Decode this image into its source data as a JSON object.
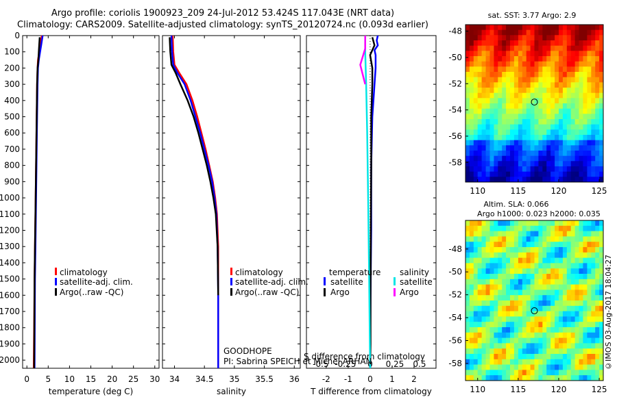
{
  "title_line1": "Argo profile: coriolis 1900923_209 24-Jul-2012 53.424S 117.043E (NRT data)",
  "title_line2": "Climatology: CARS2009. Satellite-adjusted climatology: synTS_20120724.nc (0.093d earlier)",
  "stamp": "©IMOS 03-Aug-2017 18:04:27",
  "colors": {
    "climatology": "#ff0000",
    "satellite": "#0000ff",
    "argo": "#000000",
    "s_satellite": "#00e5e5",
    "s_argo": "#ff00ff"
  },
  "chart_data": [
    {
      "type": "line",
      "panel": "temperature",
      "xlabel": "temperature (deg C)",
      "ylabel": "",
      "xlim": [
        -1,
        31
      ],
      "ylim": [
        2050,
        0
      ],
      "xticks": [
        "0",
        "5",
        "10",
        "15",
        "20",
        "25",
        "30"
      ],
      "yticks": [
        "0",
        "100",
        "200",
        "300",
        "400",
        "500",
        "600",
        "700",
        "800",
        "900",
        "1000",
        "1100",
        "1200",
        "1300",
        "1400",
        "1500",
        "1600",
        "1700",
        "1800",
        "1900",
        "2000"
      ],
      "legend": [
        "climatology",
        "satellite-adj. clim.",
        "Argo(..raw -QC)"
      ],
      "series": [
        {
          "name": "climatology",
          "color": "red",
          "x": [
            3.5,
            3.2,
            2.9,
            2.6,
            2.5,
            2.4,
            2.3,
            2.2,
            2.1,
            2.0,
            1.9,
            1.8,
            1.7,
            1.6
          ],
          "y": [
            0,
            50,
            100,
            150,
            200,
            300,
            500,
            700,
            900,
            1100,
            1300,
            1500,
            1800,
            2050
          ]
        },
        {
          "name": "satellite-adj. clim.",
          "color": "blue",
          "x": [
            3.7,
            3.4,
            3.1,
            2.8,
            2.6,
            2.5,
            2.4,
            2.3,
            2.2,
            2.1,
            2.0,
            1.9,
            1.8
          ],
          "y": [
            0,
            50,
            100,
            150,
            200,
            300,
            500,
            700,
            900,
            1100,
            1300,
            1500,
            2050
          ]
        },
        {
          "name": "Argo(..raw -QC)",
          "color": "black",
          "x": [
            3.0,
            2.9,
            2.8,
            2.7,
            2.5,
            2.4,
            2.3,
            2.2,
            2.1,
            2.0,
            1.9,
            1.8,
            1.7
          ],
          "y": [
            10,
            50,
            100,
            150,
            200,
            300,
            500,
            700,
            900,
            1100,
            1300,
            1500,
            2050
          ]
        }
      ]
    },
    {
      "type": "line",
      "panel": "salinity",
      "xlabel": "salinity",
      "xlim": [
        33.8,
        36.1
      ],
      "ylim": [
        2050,
        0
      ],
      "xticks": [
        "34",
        "34.5",
        "35",
        "35.5",
        "36"
      ],
      "legend": [
        "climatology",
        "satellite-adj. clim.",
        "Argo(..raw -QC)"
      ],
      "annotation": [
        "GOODHOPE",
        "PI: Sabrina SPEICH et Michel ARHAN"
      ],
      "series": [
        {
          "name": "climatology",
          "color": "red",
          "x": [
            33.97,
            33.98,
            34.0,
            34.08,
            34.2,
            34.3,
            34.38,
            34.45,
            34.52,
            34.58,
            34.64,
            34.68,
            34.71,
            34.73,
            34.73,
            34.73
          ],
          "y": [
            0,
            100,
            180,
            230,
            300,
            400,
            500,
            600,
            700,
            800,
            900,
            1000,
            1100,
            1300,
            1600,
            2050
          ]
        },
        {
          "name": "satellite-adj. clim.",
          "color": "blue",
          "x": [
            33.95,
            33.96,
            33.98,
            34.05,
            34.17,
            34.27,
            34.35,
            34.43,
            34.5,
            34.57,
            34.63,
            34.67,
            34.7,
            34.72,
            34.73,
            34.73
          ],
          "y": [
            0,
            100,
            180,
            230,
            300,
            400,
            500,
            600,
            700,
            800,
            900,
            1000,
            1100,
            1300,
            1600,
            2050
          ]
        },
        {
          "name": "Argo(..raw -QC)",
          "color": "black",
          "x": [
            33.92,
            33.93,
            33.95,
            34.02,
            34.1,
            34.22,
            34.32,
            34.4,
            34.47,
            34.54,
            34.6,
            34.65,
            34.69,
            34.72,
            34.73
          ],
          "y": [
            10,
            100,
            180,
            230,
            300,
            400,
            500,
            600,
            700,
            800,
            900,
            1000,
            1100,
            1300,
            1600
          ]
        }
      ]
    },
    {
      "type": "line",
      "panel": "difference from climatology",
      "xlabel": "T difference from climatology",
      "x2label": "S difference from climatology",
      "xlim": [
        -2.9,
        3.0
      ],
      "ylim": [
        2050,
        0
      ],
      "xticks": [
        "-2",
        "-1",
        "0",
        "1",
        "2"
      ],
      "x2ticks": [
        "-0.5",
        "-0.25",
        "0",
        "0.25",
        "0.5"
      ],
      "legend": [
        "temperature",
        "satellite",
        "Argo",
        "salinity",
        "satellite",
        "Argo"
      ],
      "series": [
        {
          "name": "temperature satellite",
          "color": "blue",
          "x": [
            0.35,
            0.3,
            0.35,
            0.2,
            0.25,
            0.25,
            0.2,
            0.1,
            0.05,
            0.05,
            0.02,
            0.0
          ],
          "y": [
            0,
            30,
            60,
            90,
            120,
            200,
            300,
            500,
            800,
            1200,
            1600,
            2050
          ]
        },
        {
          "name": "temperature Argo",
          "color": "black",
          "x": [
            0.1,
            0.2,
            0.0,
            0.1,
            0.1,
            0.05,
            0.05,
            0.03,
            0.02,
            0.02,
            0.0
          ],
          "y": [
            10,
            60,
            120,
            200,
            300,
            500,
            800,
            1200,
            1600,
            1900,
            2050
          ]
        },
        {
          "name": "salinity satellite",
          "color": "cyan",
          "x": [
            -0.05,
            -0.05,
            -0.04,
            -0.03,
            -0.02,
            -0.01,
            0.0
          ],
          "y": [
            0,
            100,
            300,
            600,
            1000,
            1500,
            2050
          ]
        },
        {
          "name": "salinity Argo",
          "color": "magenta",
          "x": [
            -0.05,
            -0.05,
            -0.1,
            -0.05
          ],
          "y": [
            0,
            80,
            180,
            300
          ]
        }
      ]
    },
    {
      "type": "heatmap",
      "panel": "sat. SST",
      "title": "sat. SST: 3.77 Argo: 2.9",
      "xlim": [
        108.5,
        125.5
      ],
      "ylim": [
        -59.5,
        -47.5
      ],
      "xticks": [
        "110",
        "115",
        "120",
        "125"
      ],
      "yticks": [
        "-48",
        "-50",
        "-52",
        "-54",
        "-56",
        "-58"
      ],
      "marker": {
        "x": 117.0,
        "y": -53.4
      }
    },
    {
      "type": "heatmap",
      "panel": "Altim. SLA",
      "title": "Altim. SLA: 0.066",
      "subtitle": "Argo h1000: 0.023 h2000: 0.035",
      "xlim": [
        108.5,
        125.5
      ],
      "ylim": [
        -59.5,
        -45.5
      ],
      "xticks": [
        "110",
        "115",
        "120",
        "125"
      ],
      "yticks": [
        "-48",
        "-50",
        "-52",
        "-54",
        "-56",
        "-58"
      ],
      "marker": {
        "x": 117.0,
        "y": -53.4
      }
    }
  ]
}
